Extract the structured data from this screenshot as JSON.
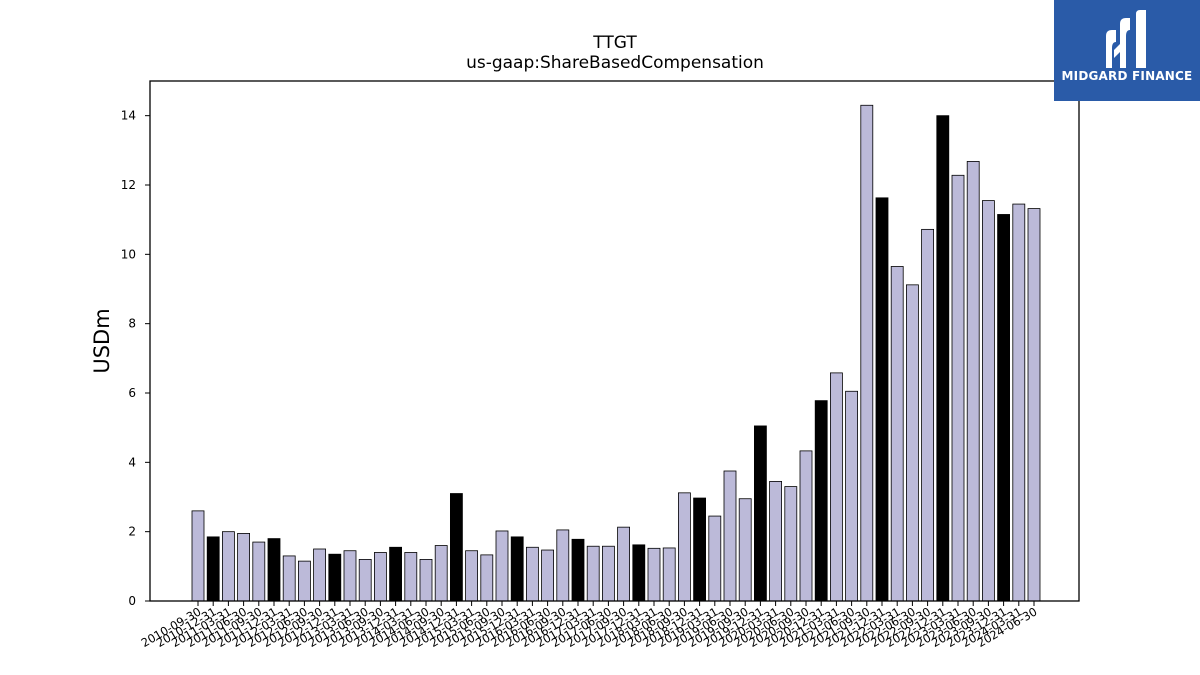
{
  "logo": {
    "text": "MIDGARD FINANCE",
    "bg_color": "#2a5ba8",
    "fg_color": "#ffffff"
  },
  "chart_data": {
    "type": "bar",
    "title": "TTGT",
    "subtitle": "us-gaap:ShareBasedCompensation",
    "ylabel": "USDm",
    "xlabel": "",
    "ylim": [
      0,
      15
    ],
    "yticks": [
      0,
      2,
      4,
      6,
      8,
      10,
      12,
      14
    ],
    "grid": false,
    "colors": {
      "quarter": "#bcbad9",
      "year_end": "#000000"
    },
    "categories": [
      "2010-09-30",
      "2010-12-31",
      "2011-03-31",
      "2011-06-30",
      "2011-09-30",
      "2011-12-31",
      "2012-03-31",
      "2012-06-30",
      "2012-09-30",
      "2012-12-31",
      "2013-03-31",
      "2013-06-30",
      "2013-09-30",
      "2013-12-31",
      "2014-03-31",
      "2014-06-30",
      "2014-09-30",
      "2014-12-31",
      "2015-03-31",
      "2015-06-30",
      "2015-09-30",
      "2015-12-31",
      "2016-03-31",
      "2016-06-30",
      "2016-09-30",
      "2016-12-31",
      "2017-03-31",
      "2017-06-30",
      "2017-09-30",
      "2017-12-31",
      "2018-03-31",
      "2018-06-30",
      "2018-09-30",
      "2018-12-31",
      "2019-03-31",
      "2019-06-30",
      "2019-09-30",
      "2019-12-31",
      "2020-03-31",
      "2020-06-30",
      "2020-09-30",
      "2020-12-31",
      "2021-03-31",
      "2021-06-30",
      "2021-09-30",
      "2021-12-31",
      "2022-03-31",
      "2022-06-30",
      "2022-09-30",
      "2022-12-31",
      "2023-03-31",
      "2023-06-30",
      "2023-09-30",
      "2023-12-31",
      "2024-03-31",
      "2024-06-30"
    ],
    "values": [
      2.6,
      1.85,
      2.0,
      1.95,
      1.7,
      1.8,
      1.3,
      1.15,
      1.5,
      1.35,
      1.45,
      1.2,
      1.4,
      1.55,
      1.4,
      1.2,
      1.6,
      3.1,
      1.45,
      1.33,
      2.02,
      1.85,
      1.55,
      1.47,
      2.05,
      1.78,
      1.58,
      1.58,
      2.13,
      1.62,
      1.52,
      1.53,
      3.12,
      2.97,
      2.45,
      3.75,
      2.95,
      5.05,
      3.45,
      3.3,
      4.33,
      5.78,
      6.58,
      6.05,
      14.3,
      11.63,
      9.65,
      9.12,
      10.72,
      14.0,
      12.28,
      12.68,
      11.55,
      11.15,
      11.45,
      11.32
    ],
    "year_end": [
      false,
      true,
      false,
      false,
      false,
      true,
      false,
      false,
      false,
      true,
      false,
      false,
      false,
      true,
      false,
      false,
      false,
      true,
      false,
      false,
      false,
      true,
      false,
      false,
      false,
      true,
      false,
      false,
      false,
      true,
      false,
      false,
      false,
      true,
      false,
      false,
      false,
      true,
      false,
      false,
      false,
      true,
      false,
      false,
      false,
      true,
      false,
      false,
      false,
      true,
      false,
      false,
      false,
      true,
      false,
      false
    ]
  }
}
